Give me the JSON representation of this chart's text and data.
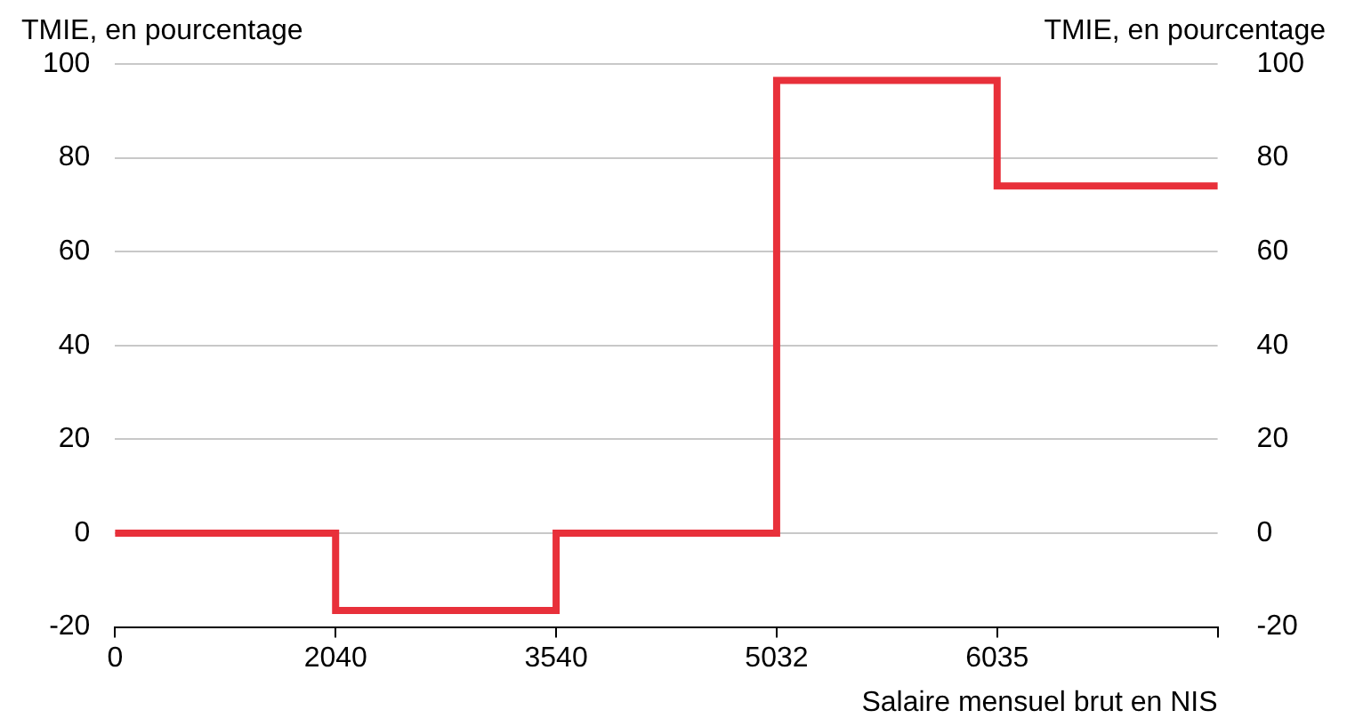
{
  "chart_data": {
    "type": "step",
    "ylabel": "TMIE, en pourcentage",
    "y2label": "TMIE, en pourcentage",
    "xlabel": "Salaire mensuel brut en NIS",
    "categories": [
      "0",
      "2040",
      "3540",
      "5032",
      "6035",
      null
    ],
    "series": [
      {
        "color": "#e8303a",
        "values": [
          0,
          -16.5,
          0,
          96.5,
          74,
          74
        ]
      }
    ],
    "ylim": [
      -20,
      100
    ],
    "yticks": [
      -20,
      0,
      20,
      40,
      60,
      80,
      100
    ],
    "y2lim": [
      -20,
      100
    ],
    "y2ticks": [
      -20,
      0,
      20,
      40,
      60,
      80,
      100
    ],
    "grid": "y",
    "legend": false,
    "marker": "none",
    "line_style": "solid"
  }
}
